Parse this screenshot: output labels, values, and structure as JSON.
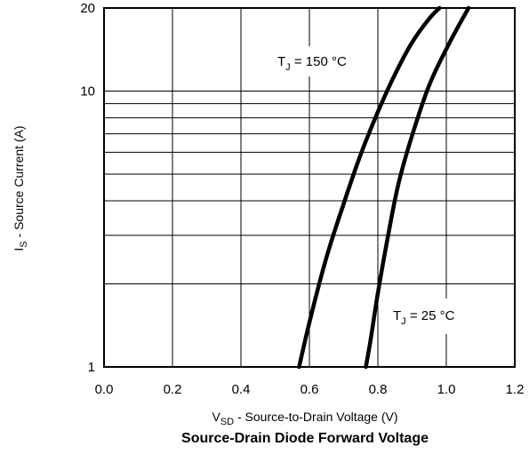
{
  "chart_data": {
    "type": "line",
    "title": "Source-Drain Diode Forward Voltage",
    "xlabel": {
      "main": "V",
      "sub": "SD",
      "rest": " - Source-to-Drain Voltage (V)"
    },
    "ylabel": {
      "main": "I",
      "sub": "S",
      "rest": " - Source Current (A)"
    },
    "xlim": [
      0.0,
      1.2
    ],
    "ylim": [
      1,
      20
    ],
    "yscale": "log",
    "grid": true,
    "x_ticks": [
      "0.0",
      "0.2",
      "0.4",
      "0.6",
      "0.8",
      "1.0",
      "1.2"
    ],
    "y_ticks": [
      "1",
      "10",
      "20"
    ],
    "series": [
      {
        "name": "TJ = 150 °C",
        "x": [
          0.57,
          0.6,
          0.65,
          0.7,
          0.75,
          0.8,
          0.85,
          0.9,
          0.95,
          0.98
        ],
        "y": [
          1,
          1.45,
          2.5,
          3.9,
          5.9,
          8.4,
          11.5,
          15,
          18.3,
          20
        ]
      },
      {
        "name": "TJ = 25 °C",
        "x": [
          0.765,
          0.78,
          0.8,
          0.83,
          0.86,
          0.9,
          0.95,
          1.0,
          1.04,
          1.065
        ],
        "y": [
          1,
          1.28,
          1.85,
          3.0,
          4.6,
          6.9,
          10.5,
          14.2,
          17.6,
          20
        ]
      }
    ],
    "annotations": [
      {
        "series": "TJ = 150 °C",
        "main": "T",
        "sub": "J",
        "rest": " = 150 °C"
      },
      {
        "series": "TJ = 25 °C",
        "main": "T",
        "sub": "J",
        "rest": " = 25 °C"
      }
    ]
  }
}
